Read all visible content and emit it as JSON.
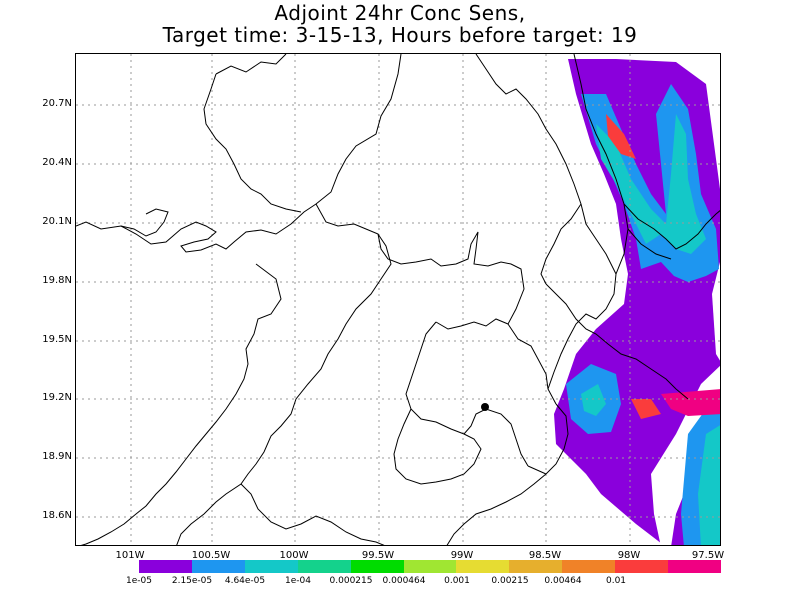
{
  "title": {
    "line1": "Adjoint 24hr Conc Sens,",
    "line2": "Target time: 3-15-13, Hours before target: 19"
  },
  "axes": {
    "y_ticks": [
      "20.7N",
      "20.4N",
      "20.1N",
      "19.8N",
      "19.5N",
      "19.2N",
      "18.9N",
      "18.6N"
    ],
    "x_ticks": [
      "101W",
      "100.5W",
      "100W",
      "99.5W",
      "99W",
      "98.5W",
      "98W",
      "97.5W"
    ]
  },
  "colorbar": {
    "colors": [
      "#8a00dc",
      "#1e96f0",
      "#14c8c8",
      "#14d28c",
      "#00dc00",
      "#a0e632",
      "#e6dc32",
      "#e6af2d",
      "#f08228",
      "#fa3c3c",
      "#f00082"
    ],
    "labels": [
      "1e-05",
      "2.15e-05",
      "4.64e-05",
      "1e-04",
      "0.000215",
      "0.000464",
      "0.001",
      "0.00215",
      "0.00464",
      "0.01"
    ]
  },
  "map": {
    "marker": "target-location"
  }
}
